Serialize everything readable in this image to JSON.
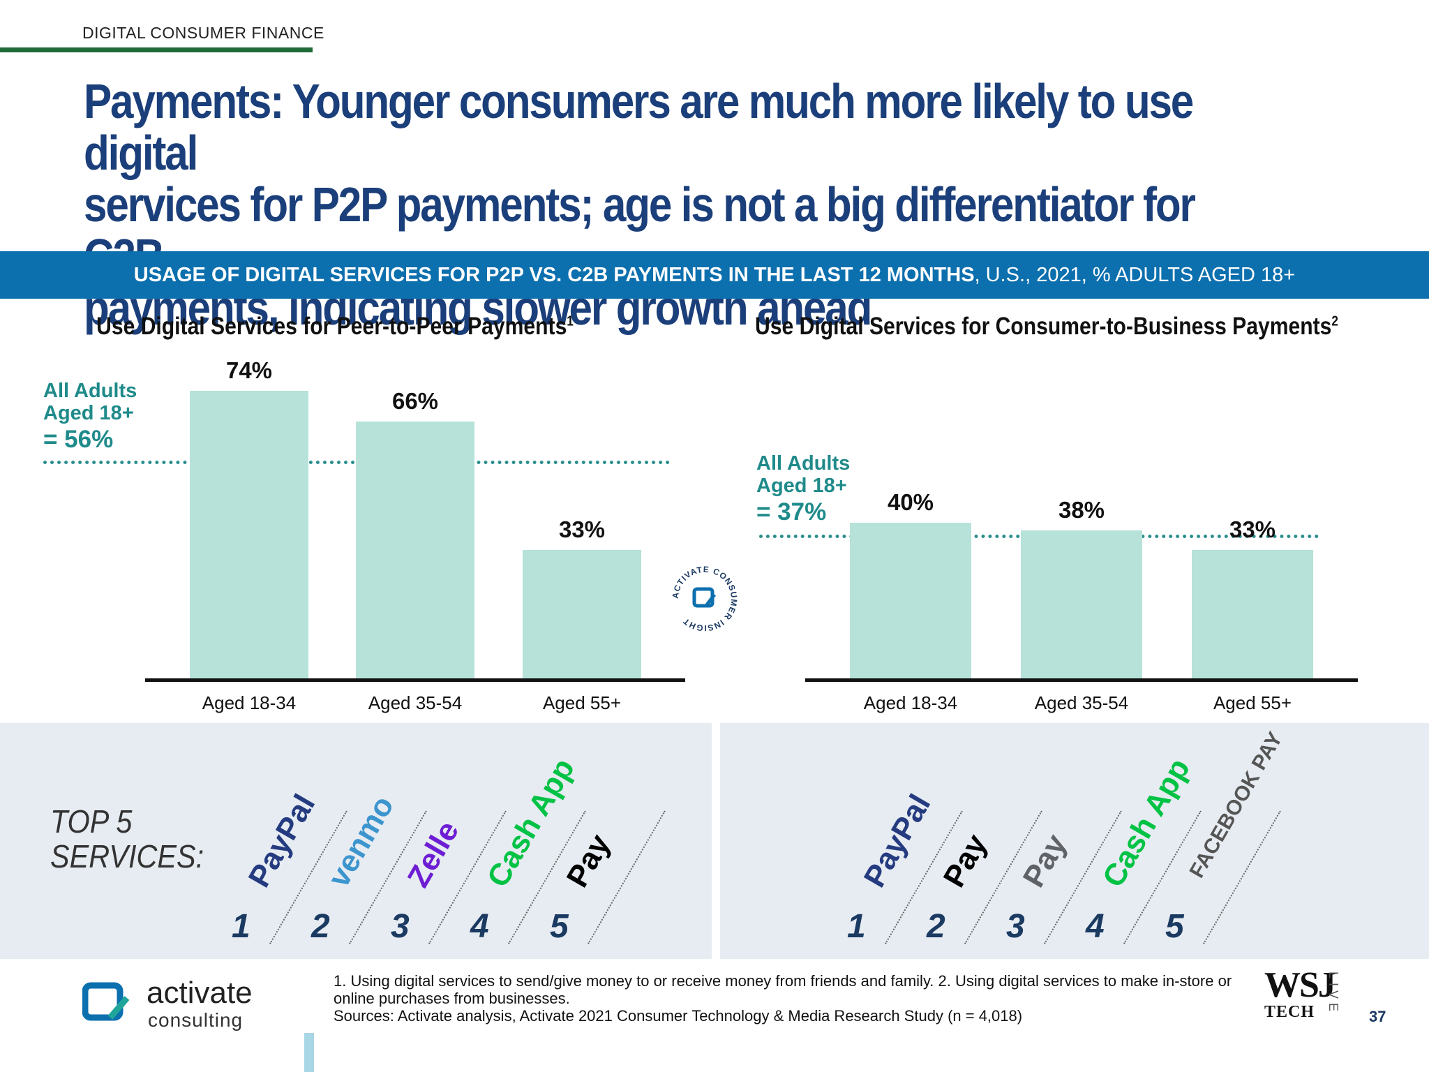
{
  "header": {
    "section_label": "DIGITAL CONSUMER FINANCE",
    "headline_lines": [
      "Payments: Younger consumers are much more likely to use digital",
      "services for P2P payments; age is not a big differentiator for C2B",
      "payments, indicating slower growth ahead"
    ]
  },
  "banner": {
    "bold": "USAGE OF DIGITAL SERVICES FOR P2P VS. C2B PAYMENTS IN THE LAST 12 MONTHS",
    "rest": ", U.S., 2021, % ADULTS AGED 18+"
  },
  "colors": {
    "bar": "#b6e2d9",
    "avg": "#2a8e8e",
    "headline": "#1b3f7a",
    "banner": "#0c6fae"
  },
  "chart_data": [
    {
      "type": "bar",
      "title": "Use Digital Services for Peer-to-Peer Payments",
      "title_sup": "1",
      "categories": [
        "Aged 18-34",
        "Aged 35-54",
        "Aged 55+"
      ],
      "values": [
        74,
        66,
        33
      ],
      "value_labels": [
        "74%",
        "66%",
        "33%"
      ],
      "average": {
        "value": 56,
        "label_lines": [
          "All Adults",
          "Aged 18+"
        ],
        "value_label": "= 56%"
      },
      "ylim": [
        0,
        80
      ]
    },
    {
      "type": "bar",
      "title": "Use Digital Services for Consumer-to-Business Payments",
      "title_sup": "2",
      "categories": [
        "Aged 18-34",
        "Aged 35-54",
        "Aged 55+"
      ],
      "values": [
        40,
        38,
        33
      ],
      "value_labels": [
        "40%",
        "38%",
        "33%"
      ],
      "average": {
        "value": 37,
        "label_lines": [
          "All Adults",
          "Aged 18+"
        ],
        "value_label": "= 37%"
      },
      "ylim": [
        0,
        80
      ]
    }
  ],
  "seal": {
    "text": "ACTIVATE CONSUMER INSIGHT"
  },
  "top5": {
    "label_lines": [
      "TOP 5",
      "SERVICES:"
    ],
    "p2p": [
      {
        "rank": "1",
        "name": "PayPal",
        "color": "#253b80"
      },
      {
        "rank": "2",
        "name": "venmo",
        "color": "#3d95ce"
      },
      {
        "rank": "3",
        "name": "Zelle",
        "color": "#6d1ed4"
      },
      {
        "rank": "4",
        "name": "Cash App",
        "color": "#00c244"
      },
      {
        "rank": "5",
        "name": "Pay",
        "color": "#000000"
      }
    ],
    "c2b": [
      {
        "rank": "1",
        "name": "PayPal",
        "color": "#253b80"
      },
      {
        "rank": "2",
        "name": "Pay",
        "color": "#000000"
      },
      {
        "rank": "3",
        "name": "Pay",
        "color": "#5f6368"
      },
      {
        "rank": "4",
        "name": "Cash App",
        "color": "#00c244"
      },
      {
        "rank": "5",
        "name": "FACEBOOK PAY",
        "color": "#555555"
      }
    ]
  },
  "footer": {
    "logo_name": "activate",
    "logo_sub": "consulting",
    "footnote_1": "1. Using digital services to send/give money to or receive money from friends and family.  2. Using digital services to make in-store or online purchases from businesses.",
    "sources": "Sources: Activate analysis, Activate 2021 Consumer Technology & Media Research Study (n = 4,018)",
    "wsj_brand": "WSJ",
    "wsj_sub": "TECH",
    "wsj_live": "LIVE",
    "page_number": "37"
  }
}
